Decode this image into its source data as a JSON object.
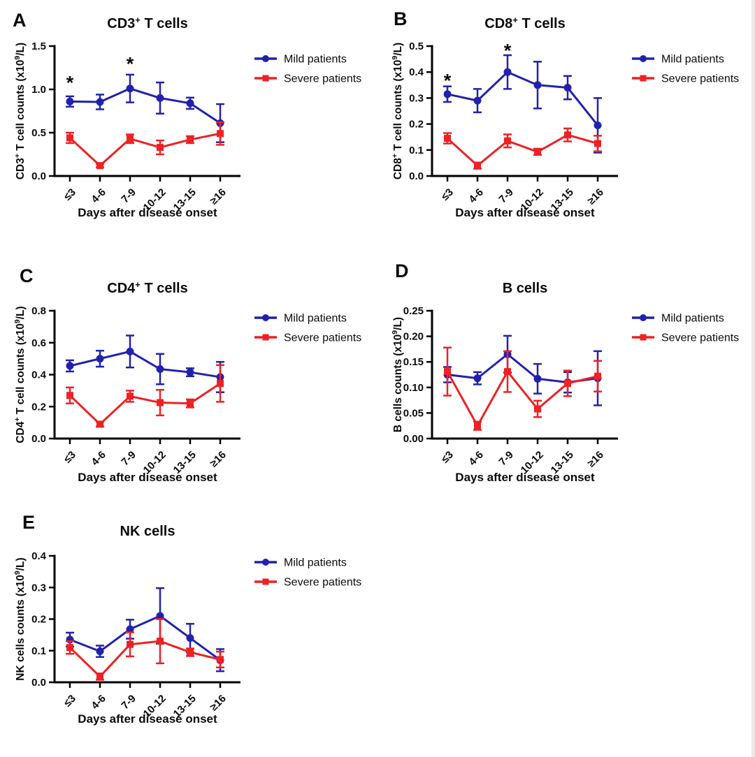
{
  "figure": {
    "background": "#ffffff",
    "axis_color": "#000000",
    "text_color": "#0a0a0a",
    "x_axis_label": "Days after disease onset",
    "categories": [
      "≤3",
      "4-6",
      "7-9",
      "10-12",
      "13-15",
      "≥16"
    ],
    "legend": [
      "Mild patients",
      "Severe patients"
    ],
    "colors": {
      "mild": "#2121ad",
      "severe": "#ee2124"
    }
  },
  "chart_data": [
    {
      "id": "A",
      "type": "line",
      "title_parts": [
        {
          "t": "CD3"
        },
        {
          "t": "+",
          "sup": true
        },
        {
          "t": " T cells"
        }
      ],
      "ylabel_parts": [
        {
          "t": "CD3"
        },
        {
          "t": "+",
          "sup": true
        },
        {
          "t": " T cell counts (x10"
        },
        {
          "t": "9",
          "sup": true
        },
        {
          "t": "/L)"
        }
      ],
      "xlabel": "Days after disease onset",
      "categories": [
        "≤3",
        "4-6",
        "7-9",
        "10-12",
        "13-15",
        "≥16"
      ],
      "ylim": [
        0,
        1.5
      ],
      "yticks": [
        0.0,
        0.5,
        1.0,
        1.5
      ],
      "ytick_decimals": 1,
      "grid": false,
      "legend_position": "right-top",
      "series": [
        {
          "name": "Mild patients",
          "color": "#2121ad",
          "marker": "circle",
          "values": [
            0.86,
            0.855,
            1.01,
            0.9,
            0.84,
            0.61
          ],
          "errors": [
            0.06,
            0.085,
            0.16,
            0.18,
            0.065,
            0.22
          ]
        },
        {
          "name": "Severe patients",
          "color": "#ee2124",
          "marker": "square",
          "values": [
            0.44,
            0.12,
            0.43,
            0.33,
            0.42,
            0.49
          ],
          "errors": [
            0.06,
            0.02,
            0.05,
            0.08,
            0.04,
            0.13
          ]
        }
      ],
      "annotations": [
        {
          "x": 0,
          "y": 1.1,
          "text": "*"
        },
        {
          "x": 2,
          "y": 1.32,
          "text": "*"
        }
      ]
    },
    {
      "id": "B",
      "type": "line",
      "title_parts": [
        {
          "t": "CD8"
        },
        {
          "t": "+",
          "sup": true
        },
        {
          "t": " T cells"
        }
      ],
      "ylabel_parts": [
        {
          "t": "CD8"
        },
        {
          "t": "+",
          "sup": true
        },
        {
          "t": " T cell counts (x10"
        },
        {
          "t": "9",
          "sup": true
        },
        {
          "t": "/L)"
        }
      ],
      "xlabel": "Days after disease onset",
      "categories": [
        "≤3",
        "4-6",
        "7-9",
        "10-12",
        "13-15",
        "≥16"
      ],
      "ylim": [
        0,
        0.5
      ],
      "yticks": [
        0.0,
        0.1,
        0.2,
        0.3,
        0.4,
        0.5
      ],
      "ytick_decimals": 1,
      "grid": false,
      "legend_position": "right-top",
      "series": [
        {
          "name": "Mild patients",
          "color": "#2121ad",
          "marker": "circle",
          "values": [
            0.315,
            0.29,
            0.4,
            0.35,
            0.34,
            0.195
          ],
          "errors": [
            0.03,
            0.045,
            0.065,
            0.09,
            0.045,
            0.105
          ]
        },
        {
          "name": "Severe patients",
          "color": "#ee2124",
          "marker": "square",
          "values": [
            0.145,
            0.04,
            0.135,
            0.093,
            0.158,
            0.125
          ],
          "errors": [
            0.02,
            0.012,
            0.025,
            0.012,
            0.025,
            0.03
          ]
        }
      ],
      "annotations": [
        {
          "x": 0,
          "y": 0.375,
          "text": "*"
        },
        {
          "x": 2,
          "y": 0.49,
          "text": "*"
        }
      ]
    },
    {
      "id": "C",
      "type": "line",
      "title_parts": [
        {
          "t": "CD4"
        },
        {
          "t": "+",
          "sup": true
        },
        {
          "t": " T cells"
        }
      ],
      "ylabel_parts": [
        {
          "t": "CD4"
        },
        {
          "t": "+",
          "sup": true
        },
        {
          "t": " T cell counts (x10"
        },
        {
          "t": "9",
          "sup": true
        },
        {
          "t": "/L)"
        }
      ],
      "xlabel": "Days after disease onset",
      "categories": [
        "≤3",
        "4-6",
        "7-9",
        "10-12",
        "13-15",
        "≥16"
      ],
      "ylim": [
        0,
        0.8
      ],
      "yticks": [
        0.0,
        0.2,
        0.4,
        0.6,
        0.8
      ],
      "ytick_decimals": 1,
      "grid": false,
      "legend_position": "right-top",
      "series": [
        {
          "name": "Mild patients",
          "color": "#2121ad",
          "marker": "circle",
          "values": [
            0.455,
            0.5,
            0.545,
            0.435,
            0.415,
            0.385
          ],
          "errors": [
            0.035,
            0.05,
            0.1,
            0.095,
            0.025,
            0.095
          ]
        },
        {
          "name": "Severe patients",
          "color": "#ee2124",
          "marker": "square",
          "values": [
            0.27,
            0.09,
            0.265,
            0.225,
            0.22,
            0.345
          ],
          "errors": [
            0.05,
            0.015,
            0.035,
            0.08,
            0.025,
            0.115
          ]
        }
      ],
      "annotations": []
    },
    {
      "id": "D",
      "type": "line",
      "title_parts": [
        {
          "t": "B cells"
        }
      ],
      "ylabel_parts": [
        {
          "t": "B cells counts (x10"
        },
        {
          "t": "9",
          "sup": true
        },
        {
          "t": "/L)"
        }
      ],
      "xlabel": "Days after disease onset",
      "categories": [
        "≤3",
        "4-6",
        "7-9",
        "10-12",
        "13-15",
        "≥16"
      ],
      "ylim": [
        0,
        0.25
      ],
      "yticks": [
        0.0,
        0.05,
        0.1,
        0.15,
        0.2,
        0.25
      ],
      "ytick_decimals": 2,
      "grid": false,
      "legend_position": "right-top",
      "series": [
        {
          "name": "Mild patients",
          "color": "#2121ad",
          "marker": "circle",
          "values": [
            0.125,
            0.118,
            0.165,
            0.117,
            0.11,
            0.118
          ],
          "errors": [
            0.015,
            0.012,
            0.036,
            0.029,
            0.02,
            0.053
          ]
        },
        {
          "name": "Severe patients",
          "color": "#ee2124",
          "marker": "square",
          "values": [
            0.131,
            0.025,
            0.131,
            0.058,
            0.108,
            0.122
          ],
          "errors": [
            0.047,
            0.008,
            0.04,
            0.016,
            0.025,
            0.03
          ]
        }
      ],
      "annotations": []
    },
    {
      "id": "E",
      "type": "line",
      "title_parts": [
        {
          "t": "NK cells"
        }
      ],
      "ylabel_parts": [
        {
          "t": "NK cells counts (x10"
        },
        {
          "t": "9",
          "sup": true
        },
        {
          "t": "/L)"
        }
      ],
      "xlabel": "Days after disease onset",
      "categories": [
        "≤3",
        "4-6",
        "7-9",
        "10-12",
        "13-15",
        "≥16"
      ],
      "ylim": [
        0,
        0.4
      ],
      "yticks": [
        0.0,
        0.1,
        0.2,
        0.3,
        0.4
      ],
      "ytick_decimals": 1,
      "grid": false,
      "legend_position": "right-top",
      "series": [
        {
          "name": "Mild patients",
          "color": "#2121ad",
          "marker": "circle",
          "values": [
            0.135,
            0.098,
            0.168,
            0.21,
            0.14,
            0.07
          ],
          "errors": [
            0.022,
            0.018,
            0.03,
            0.088,
            0.045,
            0.035
          ]
        },
        {
          "name": "Severe patients",
          "color": "#ee2124",
          "marker": "square",
          "values": [
            0.11,
            0.018,
            0.12,
            0.13,
            0.095,
            0.072
          ],
          "errors": [
            0.02,
            0.01,
            0.038,
            0.07,
            0.012,
            0.025
          ]
        }
      ],
      "annotations": []
    }
  ]
}
